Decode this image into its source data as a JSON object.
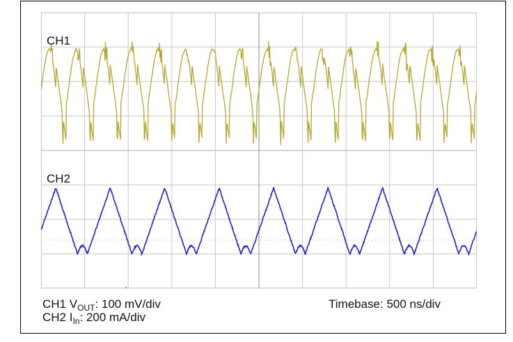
{
  "chart_data": {
    "type": "line",
    "title": "",
    "grid": true,
    "x": {
      "divisions": 10,
      "time_per_div_ns": 500
    },
    "panels": [
      {
        "label": "CH1",
        "color": "#b5a82a",
        "measure": "V_OUT",
        "scale": "100 mV/div",
        "cycles": 16,
        "waveform": "sawtooth-like with peaks ~+2 div, dips ~-2 div, switching spikes"
      },
      {
        "label": "CH2",
        "color": "#1f1fe0",
        "measure": "I_in",
        "scale": "200 mA/div",
        "cycles": 8,
        "waveform": "triangular ripple ~3 div peak-to-peak"
      }
    ]
  },
  "captions": {
    "ch1_prefix": "CH1 V",
    "ch1_sub": "OUT",
    "ch1_suffix": ": 100 mV/div",
    "ch2_prefix": "CH2 I",
    "ch2_sub": "In",
    "ch2_suffix": ": 200 mA/div",
    "timebase": "Timebase: 500 ns/div"
  }
}
